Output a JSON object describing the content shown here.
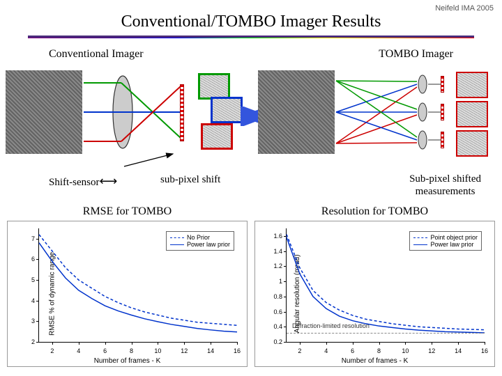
{
  "header": {
    "right": "Neifeld IMA 2005"
  },
  "title": "Conventional/TOMBO Imager Results",
  "labels": {
    "conventional": "Conventional Imager",
    "tombo": "TOMBO Imager",
    "shift_sensor": "Shift-sensor",
    "sub_pixel": "sub-pixel shift",
    "sub_shifted": "Sub-pixel shifted\nmeasurements"
  },
  "diagram": {
    "ray_colors": {
      "green": "#009900",
      "blue": "#0033cc",
      "red": "#cc0000"
    },
    "lens_fill": "#cccccc",
    "lens_stroke": "#333333",
    "thumb_borders": [
      "#009900",
      "#0033cc",
      "#cc0000"
    ],
    "sensor_color": "#d00000"
  },
  "arrow_between": {
    "color": "#3355dd"
  },
  "chart_left": {
    "title": "RMSE for TOMBO",
    "xlabel": "Number of frames - K",
    "ylabel": "RMSE % of dynamic range",
    "xlim": [
      1,
      16
    ],
    "ylim": [
      2,
      7.5
    ],
    "xticks": [
      2,
      4,
      6,
      8,
      10,
      12,
      14,
      16
    ],
    "yticks": [
      2,
      3,
      4,
      5,
      6,
      7
    ],
    "legend_pos": "top-right",
    "series": [
      {
        "label": "No Prior",
        "color": "#0033cc",
        "dash": "4 3",
        "x": [
          1,
          2,
          3,
          4,
          5,
          6,
          7,
          8,
          9,
          10,
          11,
          12,
          13,
          14,
          15,
          16
        ],
        "y": [
          7.2,
          6.4,
          5.6,
          5.0,
          4.6,
          4.2,
          3.9,
          3.65,
          3.45,
          3.3,
          3.15,
          3.05,
          2.95,
          2.9,
          2.85,
          2.8
        ]
      },
      {
        "label": "Power law prior",
        "color": "#0033cc",
        "dash": "",
        "x": [
          1,
          2,
          3,
          4,
          5,
          6,
          7,
          8,
          9,
          10,
          11,
          12,
          13,
          14,
          15,
          16
        ],
        "y": [
          6.8,
          5.9,
          5.1,
          4.5,
          4.1,
          3.75,
          3.5,
          3.3,
          3.12,
          2.98,
          2.85,
          2.75,
          2.65,
          2.58,
          2.52,
          2.48
        ]
      }
    ]
  },
  "chart_right": {
    "title": "Resolution for TOMBO",
    "xlabel": "Number of frames - K",
    "ylabel": "Angular resolution (mrad)",
    "xlim": [
      1,
      16
    ],
    "ylim": [
      0.2,
      1.7
    ],
    "xticks": [
      2,
      4,
      6,
      8,
      10,
      12,
      14,
      16
    ],
    "yticks": [
      0.2,
      0.4,
      0.6,
      0.8,
      1.0,
      1.2,
      1.4,
      1.6
    ],
    "legend_pos": "top-right",
    "annotation": "Diffraction-limited resolution",
    "series": [
      {
        "label": "Point object prior",
        "color": "#0033cc",
        "dash": "4 3",
        "x": [
          1,
          2,
          3,
          4,
          5,
          6,
          7,
          8,
          9,
          10,
          11,
          12,
          13,
          14,
          15,
          16
        ],
        "y": [
          1.62,
          1.18,
          0.88,
          0.72,
          0.62,
          0.55,
          0.5,
          0.47,
          0.44,
          0.42,
          0.4,
          0.39,
          0.38,
          0.37,
          0.365,
          0.36
        ]
      },
      {
        "label": "Power law prior",
        "color": "#0033cc",
        "dash": "",
        "x": [
          1,
          2,
          3,
          4,
          5,
          6,
          7,
          8,
          9,
          10,
          11,
          12,
          13,
          14,
          15,
          16
        ],
        "y": [
          1.58,
          1.1,
          0.8,
          0.64,
          0.54,
          0.48,
          0.44,
          0.41,
          0.39,
          0.37,
          0.355,
          0.345,
          0.335,
          0.33,
          0.325,
          0.32
        ]
      }
    ]
  }
}
